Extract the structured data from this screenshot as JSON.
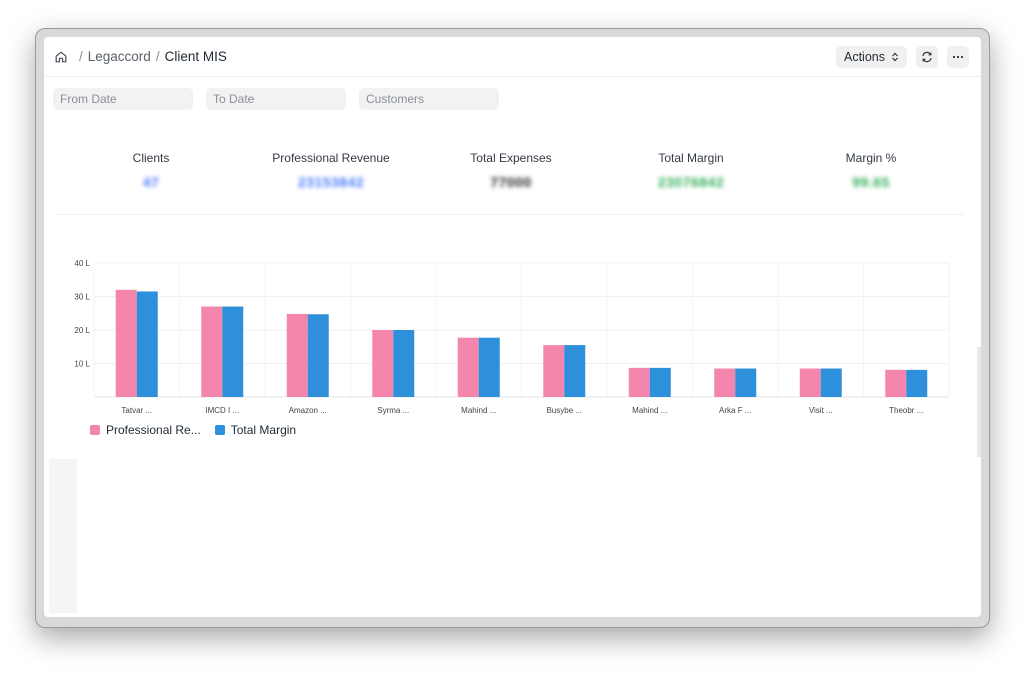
{
  "breadcrumb": {
    "root": "Legaccord",
    "current": "Client MIS",
    "separator": "/"
  },
  "header": {
    "actions_label": "Actions",
    "actions_icon": "chevron-updown-icon",
    "refresh_icon": "refresh-icon",
    "more_icon": "more-horizontal-icon"
  },
  "filters": {
    "from_date": {
      "placeholder": "From Date"
    },
    "to_date": {
      "placeholder": "To Date"
    },
    "customers": {
      "placeholder": "Customers"
    }
  },
  "kpis": [
    {
      "label": "Clients",
      "value": "47",
      "color": "#4a78ff"
    },
    {
      "label": "Professional Revenue",
      "value": "23153842",
      "color": "#4a78ff"
    },
    {
      "label": "Total Expenses",
      "value": "77000",
      "color": "#222222"
    },
    {
      "label": "Total Margin",
      "value": "23076842",
      "color": "#2faf5a"
    },
    {
      "label": "Margin %",
      "value": "99.65",
      "color": "#2faf5a"
    }
  ],
  "chart_data": {
    "type": "bar",
    "categories": [
      "Tatvar ...",
      "IMCD I ...",
      "Amazon ...",
      "Syrma ...",
      "Mahind ...",
      "Busybe ...",
      "Mahind ...",
      "Arka F ...",
      "Visit ...",
      "Theobr ..."
    ],
    "series": [
      {
        "name": "Professional Re...",
        "color": "#f485ad",
        "values": [
          3200000,
          2700000,
          2480000,
          2000000,
          1770000,
          1550000,
          870000,
          850000,
          850000,
          810000
        ]
      },
      {
        "name": "Total Margin",
        "color": "#2e8fdb",
        "values": [
          3150000,
          2700000,
          2470000,
          2000000,
          1770000,
          1550000,
          870000,
          850000,
          850000,
          810000
        ]
      }
    ],
    "y_ticks": [
      {
        "value": 1000000,
        "label": "10 L"
      },
      {
        "value": 2000000,
        "label": "20 L"
      },
      {
        "value": 3000000,
        "label": "30 L"
      },
      {
        "value": 4000000,
        "label": "40 L"
      }
    ],
    "ylim": [
      0,
      4000000
    ],
    "grid": true,
    "legend_position": "bottom-left"
  }
}
